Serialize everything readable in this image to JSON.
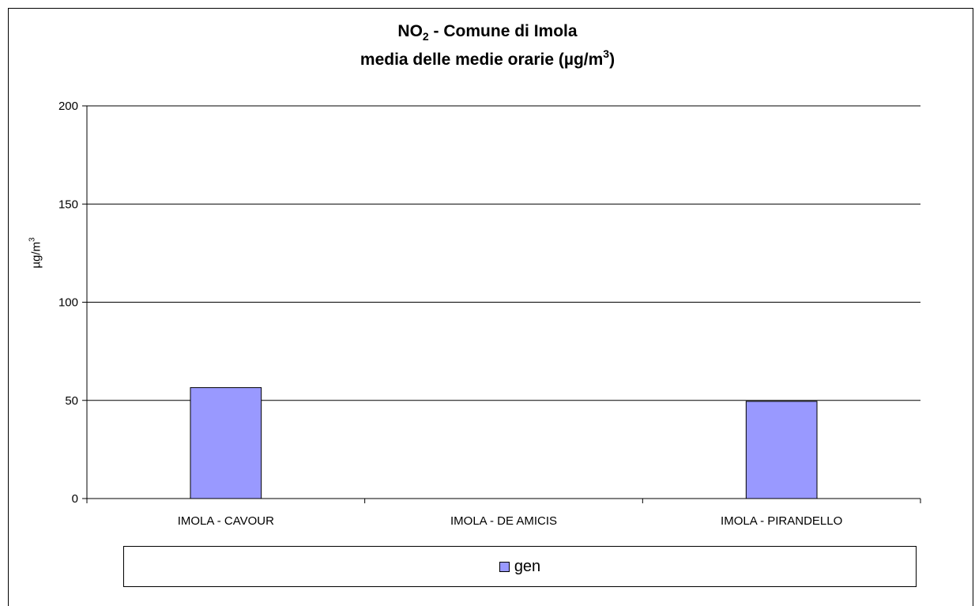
{
  "chart_data": {
    "type": "bar",
    "title_lines": [
      {
        "pre": "NO",
        "sub": "2",
        "post": " - Comune di Imola"
      },
      {
        "pre": "media delle medie orarie (µg/m",
        "sup": "3",
        "post": ")"
      }
    ],
    "xlabel": "",
    "ylabel": {
      "pre": "µg/m",
      "sup": "3"
    },
    "categories": [
      "IMOLA - CAVOUR",
      "IMOLA - DE AMICIS",
      "IMOLA - PIRANDELLO"
    ],
    "series": [
      {
        "name": "gen",
        "values": [
          56.5,
          null,
          49.5
        ],
        "color": "#9999ff"
      }
    ],
    "ylim": [
      0,
      200
    ],
    "yticks": [
      0,
      50,
      100,
      150,
      200
    ],
    "grid": true,
    "legend_position": "bottom"
  }
}
